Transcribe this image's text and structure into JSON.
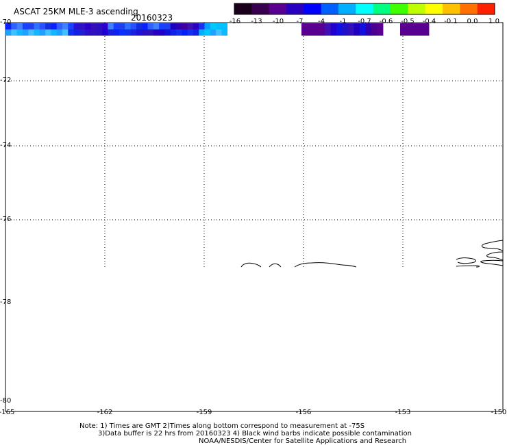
{
  "header": {
    "title": "ASCAT 25KM MLE-3 ascending",
    "date": "20160323"
  },
  "colorbar": {
    "labels": [
      "-16",
      "-13",
      "-10",
      "-7",
      "-4",
      "-1",
      "-0.7",
      "-0.6",
      "-0.5",
      "-0.4",
      "-0.1",
      "0.0",
      "1.0"
    ],
    "colors": [
      "#1a001a",
      "#3a0050",
      "#5a0090",
      "#2a00c0",
      "#0000ff",
      "#0060ff",
      "#00b0ff",
      "#00ffff",
      "#00ff80",
      "#40ff00",
      "#c0ff00",
      "#ffff00",
      "#ffc000",
      "#ff7000",
      "#ff2000"
    ]
  },
  "map": {
    "lat_labels": [
      "-70",
      "-72",
      "-74",
      "-76",
      "-78",
      "-80"
    ],
    "lon_labels": [
      "-165",
      "-162",
      "-159",
      "-156",
      "-153",
      "-150"
    ]
  },
  "notes": {
    "line1": "Note: 1) Times are GMT 2)Times along bottom correspond to measurement at -75S",
    "line2": "3)Data buffer is 22 hrs from 20160323 4) Black wind barbs indicate possible contamination",
    "line3": "NOAA/NESDIS/Center for Satellite Applications and Research"
  }
}
